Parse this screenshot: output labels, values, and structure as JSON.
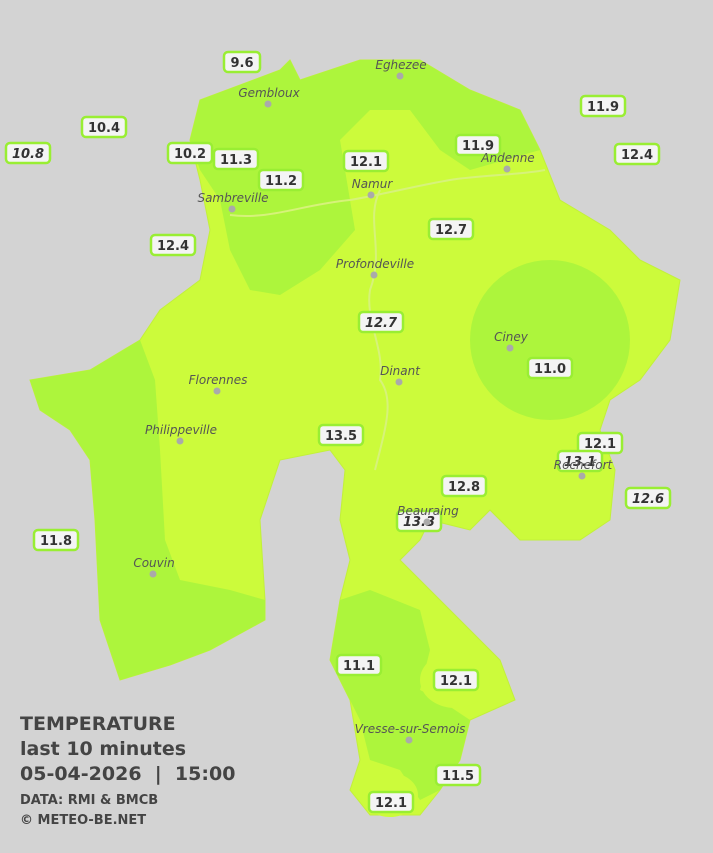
{
  "stations": [
    {
      "reading": "9.6",
      "italic": false
    },
    {
      "reading": "10.4",
      "italic": false
    },
    {
      "reading": "10.8",
      "italic": true
    },
    {
      "reading": "10.2",
      "italic": false
    },
    {
      "reading": "11.3",
      "italic": false
    },
    {
      "reading": "11.2",
      "italic": false
    },
    {
      "reading": "12.1",
      "italic": false
    },
    {
      "reading": "11.9",
      "italic": false
    },
    {
      "reading": "11.9",
      "italic": false
    },
    {
      "reading": "12.4",
      "italic": false
    },
    {
      "reading": "12.7",
      "italic": false
    },
    {
      "reading": "12.4",
      "italic": false
    },
    {
      "reading": "12.7",
      "italic": true
    },
    {
      "reading": "11.0",
      "italic": false
    },
    {
      "reading": "13.5",
      "italic": false
    },
    {
      "reading": "12.1",
      "italic": false
    },
    {
      "reading": "13.1",
      "italic": true
    },
    {
      "reading": "12.6",
      "italic": true
    },
    {
      "reading": "12.8",
      "italic": false
    },
    {
      "reading": "13.3",
      "italic": true
    },
    {
      "reading": "11.8",
      "italic": false
    },
    {
      "reading": "11.1",
      "italic": false
    },
    {
      "reading": "12.1",
      "italic": false
    },
    {
      "reading": "11.5",
      "italic": false
    },
    {
      "reading": "12.1",
      "italic": false
    }
  ],
  "cities": [
    "Eghezee",
    "Gembloux",
    "Andenne",
    "Namur",
    "Sambreville",
    "Profondeville",
    "Ciney",
    "Florennes",
    "Dinant",
    "Philippeville",
    "Rochefort",
    "Beauraing",
    "Couvin",
    "Vresse-sur-Semois"
  ],
  "legend": {
    "title": "TEMPERATURE",
    "period": "last 10 minutes",
    "datetime": "05-04-2026  |  15:00",
    "source": "DATA: RMI & BMCB",
    "copyright": "© METEO-BE.NET"
  }
}
